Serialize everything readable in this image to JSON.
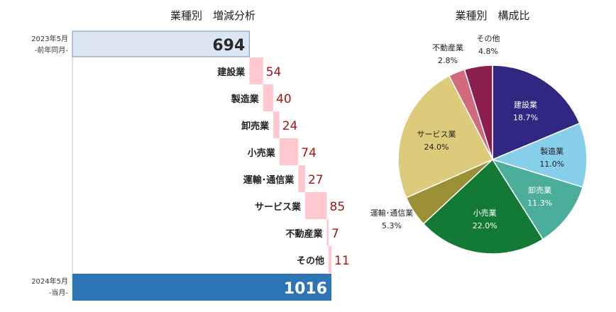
{
  "chart_data": [
    {
      "type": "waterfall",
      "title": "業種別　増減分析",
      "start": {
        "label_line1": "2023年5月",
        "label_line2": "-前年同月-",
        "value": 694,
        "color": "#dce6f2"
      },
      "end": {
        "label_line1": "2024年5月",
        "label_line2": "-当月-",
        "value": 1016,
        "color": "#2e75b6"
      },
      "steps": [
        {
          "label": "建設業",
          "value": 54
        },
        {
          "label": "製造業",
          "value": 40
        },
        {
          "label": "卸売業",
          "value": 24
        },
        {
          "label": "小売業",
          "value": 74
        },
        {
          "label": "運輸･通信業",
          "value": 27
        },
        {
          "label": "サービス業",
          "value": 85
        },
        {
          "label": "不動産業",
          "value": 7
        },
        {
          "label": "その他",
          "value": 11
        }
      ],
      "step_color": "#ffc7ce",
      "value_label_color": "#a31515"
    },
    {
      "type": "pie",
      "title": "業種別　構成比",
      "slices": [
        {
          "label": "建設業",
          "value": 18.7,
          "display": "18.7%",
          "color": "#312783",
          "label_inside": true
        },
        {
          "label": "製造業",
          "value": 11.0,
          "display": "11.0%",
          "color": "#87ceeb",
          "label_inside": true
        },
        {
          "label": "卸売業",
          "value": 11.3,
          "display": "11.3%",
          "color": "#4aae9b",
          "label_inside": true
        },
        {
          "label": "小売業",
          "value": 22.0,
          "display": "22.0%",
          "color": "#137a35",
          "label_inside": true
        },
        {
          "label": "運輸･通信業",
          "value": 5.3,
          "display": "5.3%",
          "color": "#9a9136",
          "label_inside": false
        },
        {
          "label": "サービス業",
          "value": 24.0,
          "display": "24.0%",
          "color": "#dccb7a",
          "label_inside": true
        },
        {
          "label": "不動産業",
          "value": 2.8,
          "display": "2.8%",
          "color": "#d16a7c",
          "label_inside": false
        },
        {
          "label": "その他",
          "value": 4.8,
          "display": "4.8%",
          "color": "#8b1e4f",
          "label_inside": false
        }
      ]
    }
  ]
}
